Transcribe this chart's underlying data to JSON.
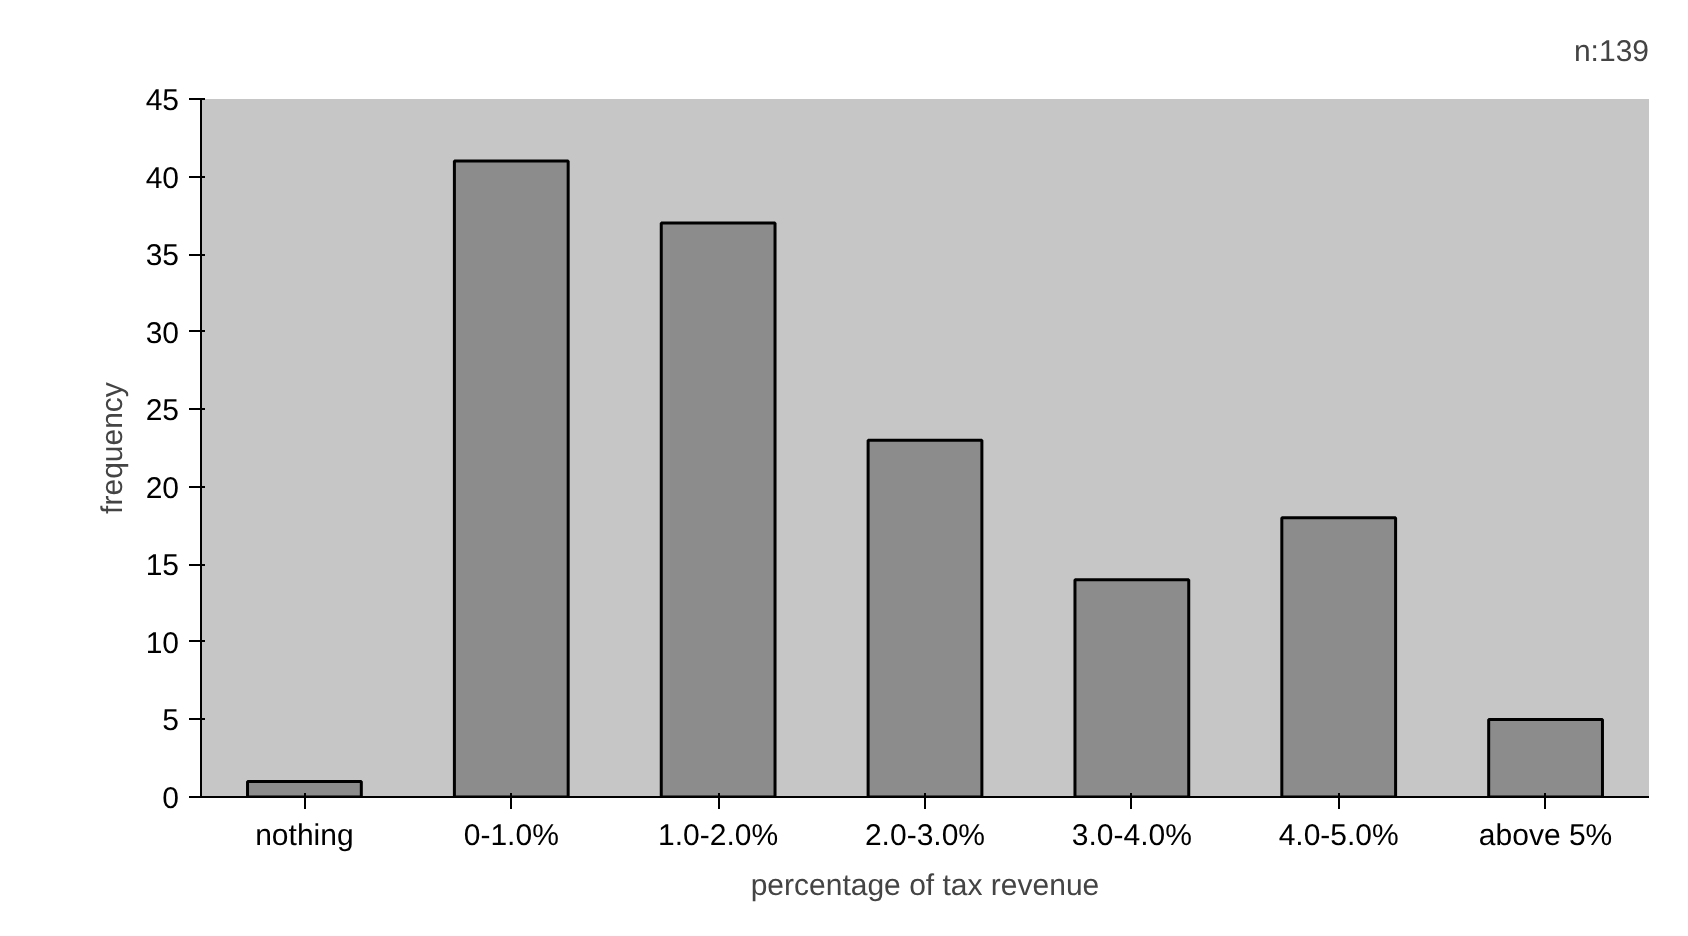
{
  "chart_data": {
    "type": "bar",
    "xlabel": "percentage of tax revenue",
    "ylabel": "frequency",
    "categories": [
      "nothing",
      "0-1.0%",
      "1.0-2.0%",
      "2.0-3.0%",
      "3.0-4.0%",
      "4.0-5.0%",
      "above 5%"
    ],
    "values": [
      1,
      41,
      37,
      23,
      14,
      18,
      5
    ],
    "color": "#8c8c8c",
    "ylim": [
      0,
      45
    ],
    "yticks": [
      0,
      5,
      10,
      15,
      20,
      25,
      30,
      35,
      40,
      45
    ],
    "grid": false,
    "annotations": [
      "n:139"
    ]
  }
}
